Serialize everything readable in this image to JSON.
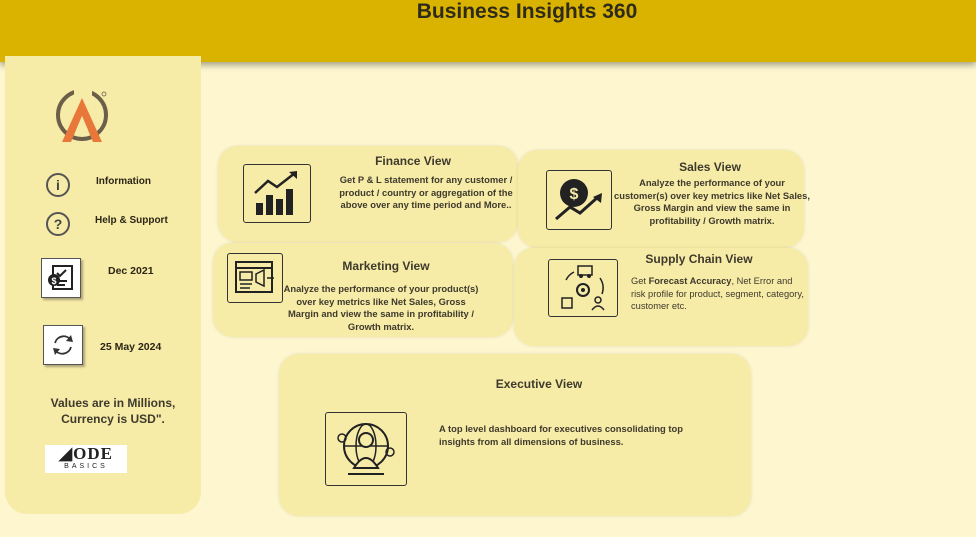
{
  "header": {
    "title": "Business Insights 360"
  },
  "sidebar": {
    "information_label": "Information",
    "help_label": "Help & Support",
    "month_label": "Dec 2021",
    "refresh_date": "25 May 2024",
    "values_note": "Values are in Millions, Currency is USD\".",
    "brand_top": "ODE",
    "brand_bottom": "BASICS"
  },
  "cards": {
    "finance": {
      "title": "Finance View",
      "desc": "Get  P & L statement for any customer / product / country or aggregation of the above over any time period and More.."
    },
    "sales": {
      "title": "Sales View",
      "desc": "Analyze the performance of your customer(s) over key metrics like Net Sales, Gross Margin and view the same in profitability / Growth matrix."
    },
    "marketing": {
      "title": "Marketing View",
      "desc": "Analyze the performance of your product(s) over key metrics like Net Sales, Gross Margin and view the same in profitability / Growth matrix."
    },
    "supply": {
      "title": "Supply Chain View",
      "desc_pre": "Get ",
      "desc_bold": "Forecast Accuracy",
      "desc_post": ", Net Error and risk profile for product, segment, category, customer etc."
    },
    "executive": {
      "title": "Executive View",
      "desc": "A top level dashboard for executives consolidating top insights from all dimensions of business."
    }
  },
  "colors": {
    "header": "#dab300",
    "page": "#fdf6cf",
    "panel": "#f7eba8"
  }
}
